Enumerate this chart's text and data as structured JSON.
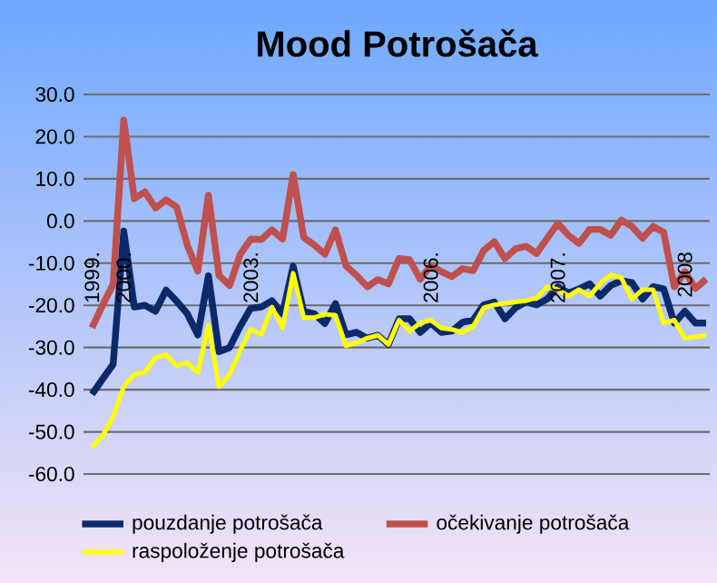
{
  "chart_data": {
    "type": "line",
    "title": "Mood Potrošača",
    "categories": [
      "1999.",
      null,
      null,
      "2000.",
      null,
      null,
      null,
      null,
      null,
      null,
      null,
      null,
      null,
      null,
      null,
      "2003.",
      null,
      null,
      null,
      null,
      null,
      null,
      null,
      null,
      null,
      null,
      null,
      null,
      null,
      null,
      null,
      null,
      "2006.",
      null,
      null,
      null,
      null,
      null,
      null,
      null,
      null,
      null,
      null,
      null,
      "2007.",
      null,
      null,
      null,
      null,
      null,
      null,
      null,
      null,
      null,
      null,
      null,
      "2008",
      null,
      null
    ],
    "series": [
      {
        "name": "pouzdanje potrošača",
        "color": "#0c2a6a",
        "values": [
          -41.1,
          -37.5,
          -34,
          -2.4,
          -20.4,
          -20,
          -21.4,
          -16.4,
          -19,
          -22,
          -27,
          -13,
          -31,
          -30,
          -25,
          -20.7,
          -20.4,
          -18.9,
          -22,
          -10.7,
          -21.4,
          -22,
          -24.3,
          -19.6,
          -27,
          -26.4,
          -27.8,
          -27.1,
          -29.3,
          -23.2,
          -23.2,
          -26.4,
          -24.2,
          -26.4,
          -26.1,
          -24,
          -23.5,
          -19.9,
          -19.2,
          -23.2,
          -20.6,
          -19.2,
          -19.9,
          -18.5,
          -15.6,
          -17.1,
          -16.1,
          -14.9,
          -17.8,
          -15.3,
          -14.2,
          -14.6,
          -18.5,
          -15.6,
          -16.1,
          -24.2,
          -21.4,
          -24.2,
          -24.2
        ]
      },
      {
        "name": "očekivanje potrošača",
        "color": "#c0504d",
        "values": [
          -25.3,
          -20,
          -15,
          23.9,
          5.3,
          6.9,
          3.1,
          5,
          3.3,
          -5.7,
          -11.9,
          6.1,
          -12.9,
          -15.3,
          -7.9,
          -4.3,
          -4.4,
          -2.1,
          -4.3,
          11,
          -3.9,
          -5.7,
          -7.9,
          -2.1,
          -10.7,
          -12.9,
          -15.6,
          -13.9,
          -14.9,
          -8.9,
          -9.2,
          -13.8,
          -10.6,
          -12,
          -13.2,
          -11.3,
          -11.8,
          -7,
          -4.9,
          -8.9,
          -6.6,
          -6,
          -7.7,
          -4.1,
          -0.6,
          -3.4,
          -5.3,
          -2,
          -2,
          -3.4,
          0.2,
          -1.3,
          -4.1,
          -1.3,
          -2.7,
          -15.6,
          -12,
          -16,
          -13.8
        ]
      },
      {
        "name": "raspoloženje potrošača",
        "color": "#ffff00",
        "values": [
          -53.6,
          -51,
          -46.4,
          -39.3,
          -36.4,
          -35.9,
          -32.4,
          -31.7,
          -34.3,
          -33.6,
          -36,
          -24.7,
          -39.3,
          -36.4,
          -30.7,
          -25.7,
          -26.9,
          -20.4,
          -25.3,
          -12.4,
          -22.9,
          -22.9,
          -22.1,
          -22.4,
          -29.6,
          -28.9,
          -27.8,
          -27.1,
          -29.3,
          -23.5,
          -26.1,
          -24.2,
          -23.5,
          -25.4,
          -25.7,
          -26.4,
          -25,
          -20.6,
          -19.9,
          -19.5,
          -19.2,
          -18.9,
          -18.2,
          -15.6,
          -16.3,
          -17.8,
          -16.3,
          -17.8,
          -14.9,
          -12.8,
          -13.5,
          -18.5,
          -16.3,
          -16.3,
          -24.2,
          -23.5,
          -27.8,
          -27.5,
          -27.1
        ]
      }
    ],
    "ylim": [
      -60,
      30
    ],
    "yticks": [
      {
        "value": -60,
        "label": "-60.0"
      },
      {
        "value": -50,
        "label": "-50.0"
      },
      {
        "value": -40,
        "label": "-40.0"
      },
      {
        "value": -30,
        "label": "-30.0"
      },
      {
        "value": -20,
        "label": "-20.0"
      },
      {
        "value": -10,
        "label": "-10.0"
      },
      {
        "value": 0,
        "label": "0.0"
      },
      {
        "value": 10,
        "label": "10.0"
      },
      {
        "value": 20,
        "label": "20.0"
      },
      {
        "value": 30,
        "label": "30.0"
      }
    ],
    "grid": "y",
    "legend": "bottom",
    "marker": "none",
    "line_style": "solid"
  }
}
